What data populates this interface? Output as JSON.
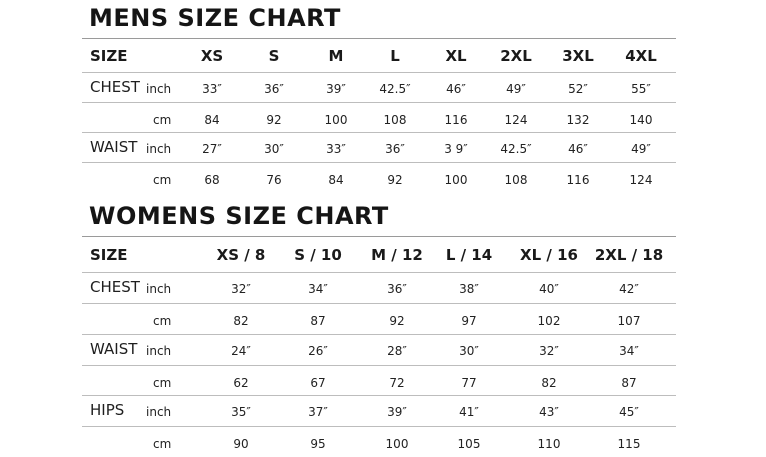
{
  "mens": {
    "title": "MENS SIZE CHART",
    "header_label": "SIZE",
    "sizes": [
      "XS",
      "S",
      "M",
      "L",
      "XL",
      "2XL",
      "3XL",
      "4XL"
    ],
    "rows": [
      {
        "label": "CHEST",
        "unit": "inch",
        "values": [
          "33″",
          "36″",
          "39″",
          "42.5″",
          "46″",
          "49″",
          "52″",
          "55″"
        ]
      },
      {
        "label": "",
        "unit": "cm",
        "values": [
          "84",
          "92",
          "100",
          "108",
          "116",
          "124",
          "132",
          "140"
        ]
      },
      {
        "label": "WAIST",
        "unit": "inch",
        "values": [
          "27″",
          "30″",
          "33″",
          "36″",
          "3 9″",
          "42.5″",
          "46″",
          "49″"
        ]
      },
      {
        "label": "",
        "unit": "cm",
        "values": [
          "68",
          "76",
          "84",
          "92",
          "100",
          "108",
          "116",
          "124"
        ]
      }
    ]
  },
  "womens": {
    "title": "WOMENS SIZE CHART",
    "header_label": "SIZE",
    "sizes": [
      "XS / 8",
      "S / 10",
      "M / 12",
      "L / 14",
      "XL / 16",
      "2XL  / 18"
    ],
    "rows": [
      {
        "label": "CHEST",
        "unit": "inch",
        "values": [
          "32″",
          "34″",
          "36″",
          "38″",
          "40″",
          "42″"
        ]
      },
      {
        "label": "",
        "unit": "cm",
        "values": [
          "82",
          "87",
          "92",
          "97",
          "102",
          "107"
        ]
      },
      {
        "label": "WAIST",
        "unit": "inch",
        "values": [
          "24″",
          "26″",
          "28″",
          "30″",
          "32″",
          "34″"
        ]
      },
      {
        "label": "",
        "unit": "cm",
        "values": [
          "62",
          "67",
          "72",
          "77",
          "82",
          "87"
        ]
      },
      {
        "label": "HIPS",
        "unit": "inch",
        "values": [
          "35″",
          "37″",
          "39″",
          "41″",
          "43″",
          "45″"
        ]
      },
      {
        "label": "",
        "unit": "cm",
        "values": [
          "90",
          "95",
          "100",
          "105",
          "110",
          "115"
        ]
      }
    ]
  }
}
